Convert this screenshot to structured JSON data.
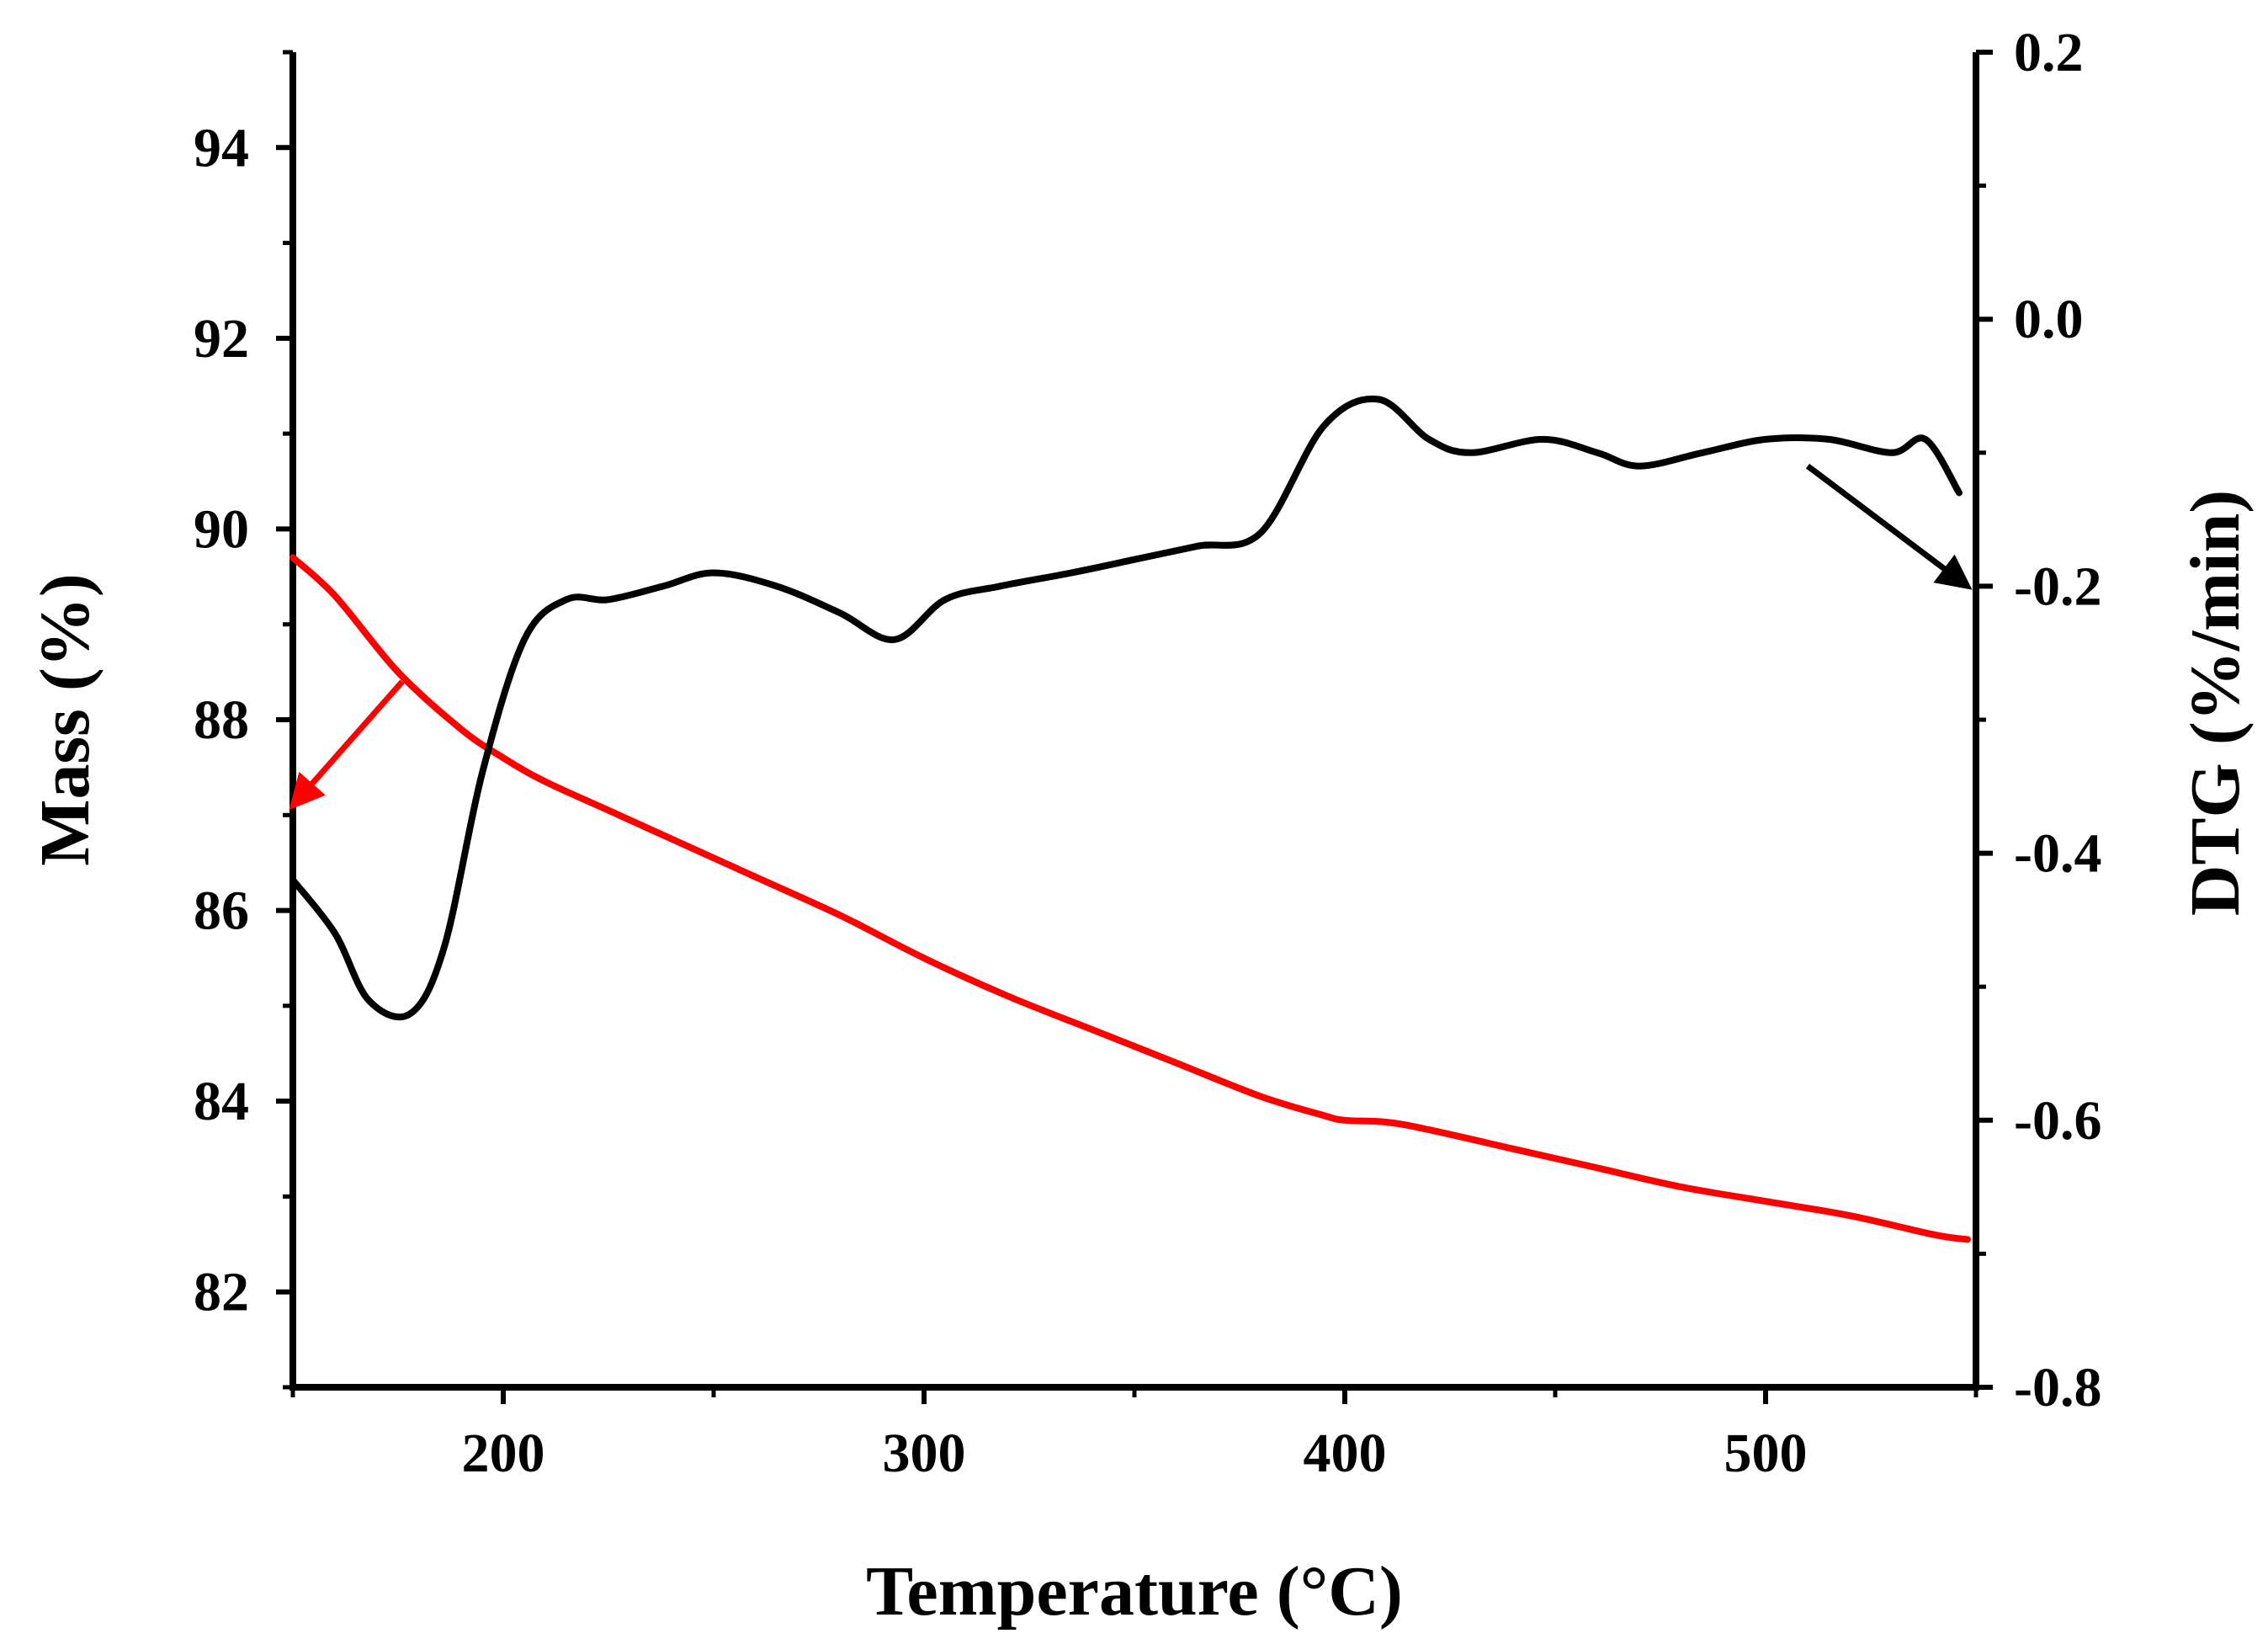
{
  "chart_data": {
    "type": "line",
    "title": "",
    "xlabel": "Temperature (°C)",
    "ylabel_left": "Mass (%)",
    "ylabel_right": "DTG (%/min)",
    "xlim": [
      150,
      550
    ],
    "ylim_left": [
      81,
      95
    ],
    "ylim_right": [
      -0.8,
      0.2
    ],
    "x_ticks": [
      "200",
      "300",
      "400",
      "500"
    ],
    "y_left_ticks": [
      "82",
      "84",
      "86",
      "88",
      "90",
      "92",
      "94"
    ],
    "y_right_ticks": [
      "0.2",
      "0.0",
      "-0.2",
      "-0.4",
      "-0.6",
      "-0.8"
    ],
    "grid": false,
    "colors": {
      "mass": "#ff0000",
      "dtg": "#000000"
    },
    "series": [
      {
        "name": "Mass",
        "axis": "left",
        "color": "#ff0000",
        "x": [
          150,
          160,
          175,
          190,
          200,
          210,
          225,
          240,
          260,
          280,
          300,
          320,
          340,
          360,
          380,
          395,
          400,
          410,
          420,
          440,
          460,
          480,
          500,
          520,
          540,
          548
        ],
        "values": [
          89.7,
          89.3,
          88.5,
          87.9,
          87.6,
          87.35,
          87.05,
          86.75,
          86.35,
          85.95,
          85.5,
          85.1,
          84.75,
          84.4,
          84.05,
          83.85,
          83.8,
          83.78,
          83.7,
          83.5,
          83.3,
          83.1,
          82.95,
          82.8,
          82.6,
          82.55
        ]
      },
      {
        "name": "DTG",
        "axis": "right",
        "color": "#000000",
        "x": [
          150,
          160,
          168,
          178,
          186,
          195,
          205,
          215,
          225,
          238,
          250,
          265,
          280,
          293,
          305,
          318,
          335,
          350,
          365,
          380,
          395,
          408,
          420,
          430,
          447,
          460,
          470,
          485,
          500,
          515,
          530,
          538,
          546
        ],
        "values": [
          -0.42,
          -0.46,
          -0.51,
          -0.52,
          -0.47,
          -0.34,
          -0.24,
          -0.21,
          -0.21,
          -0.2,
          -0.19,
          -0.2,
          -0.22,
          -0.24,
          -0.21,
          -0.2,
          -0.19,
          -0.18,
          -0.17,
          -0.16,
          -0.08,
          -0.06,
          -0.09,
          -0.1,
          -0.09,
          -0.1,
          -0.11,
          -0.1,
          -0.09,
          -0.09,
          -0.1,
          -0.09,
          -0.13
        ]
      }
    ],
    "annotations": [
      {
        "type": "arrow",
        "color": "#ff0000",
        "from": {
          "x": 176,
          "y": 88.4
        },
        "to": {
          "x": 150,
          "y": 87.1
        },
        "meaning": "points to left axis (Mass)"
      },
      {
        "type": "arrow",
        "color": "#000000",
        "from": {
          "x": 510,
          "y": -0.11
        },
        "to": {
          "x": 548,
          "y": -0.2
        },
        "meaning": "points to right axis (DTG)"
      }
    ]
  }
}
